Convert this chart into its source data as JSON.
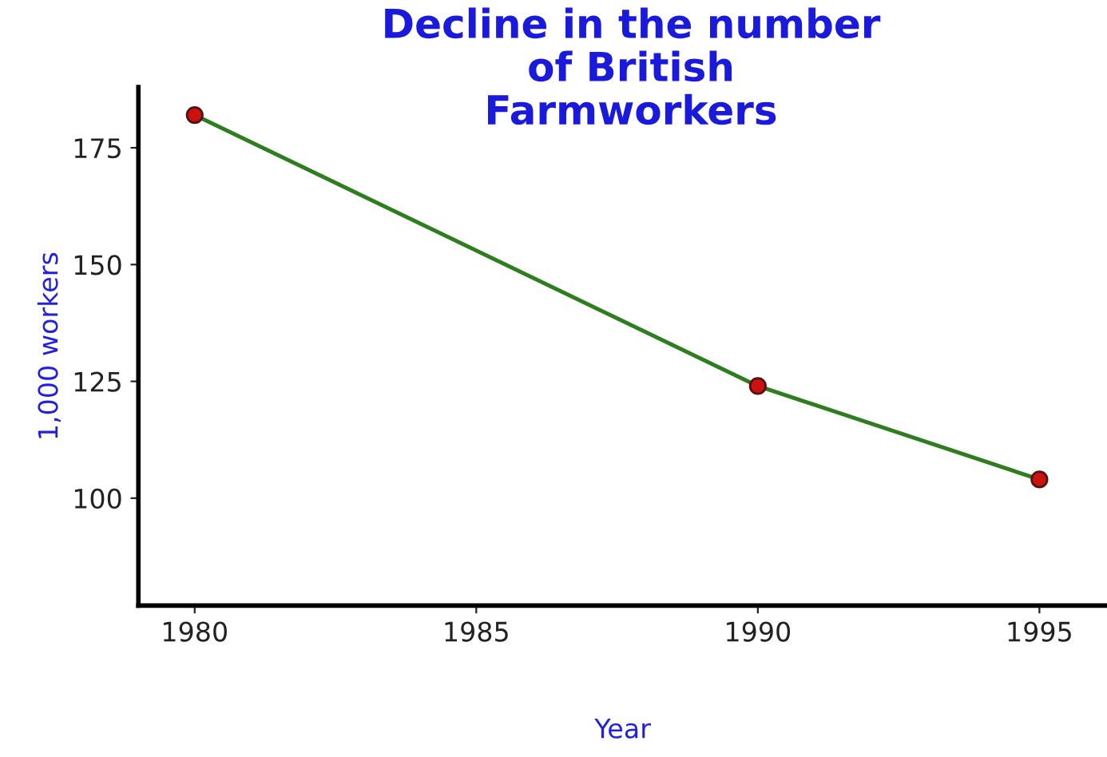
{
  "chart_data": {
    "type": "line",
    "title": "Decline in the number\nof British\nFarmworkers",
    "xlabel": "Year",
    "ylabel": "1,000 workers",
    "x": [
      1980,
      1990,
      1995
    ],
    "series": [
      {
        "color": "#2e7d1e",
        "values": [
          182,
          124,
          104
        ]
      }
    ],
    "xlim": [
      1979,
      1996.2
    ],
    "xticks": [
      1980,
      1985,
      1990,
      1995
    ],
    "ylim": [
      77,
      188
    ],
    "yticks": [
      100,
      125,
      150,
      175
    ],
    "grid": false,
    "legend": false,
    "marker": "circle",
    "line_style": "solid"
  }
}
